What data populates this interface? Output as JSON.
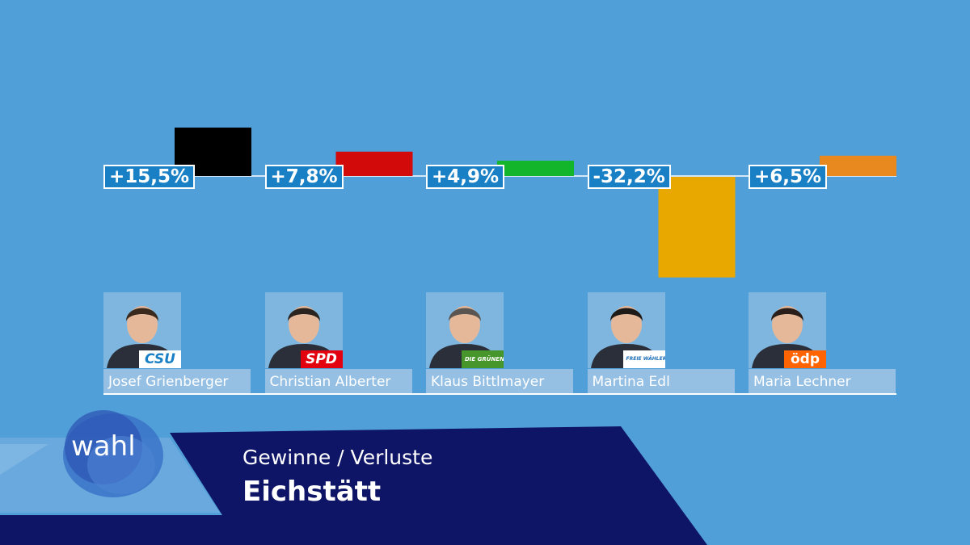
{
  "chart_data": {
    "type": "bar",
    "ylabel": "",
    "xlabel": "",
    "ylim": [
      -32.2,
      15.5
    ],
    "categories": [
      "Josef Grienberger",
      "Christian Alberter",
      "Klaus Bittlmayer",
      "Martina Edl",
      "Maria Lechner"
    ],
    "values": [
      15.5,
      7.8,
      4.9,
      -32.2,
      6.5
    ],
    "value_labels": [
      "+15,5%",
      "+7,8%",
      "+4,9%",
      "-32,2%",
      "+6,5%"
    ],
    "parties": [
      "CSU",
      "SPD",
      "DIE GRÜNEN",
      "FREIE WÄHLER",
      "ödp"
    ],
    "colors": [
      "#000000",
      "#d20a0a",
      "#13b62b",
      "#e8a800",
      "#e8891f"
    ]
  },
  "banner": {
    "logo": "wahl",
    "subtitle": "Gewinne / Verluste",
    "title": "Eichstätt"
  },
  "colors": {
    "background": "#519fd8",
    "banner_dark": "#0f1566",
    "label_box": "#1a80c6"
  }
}
